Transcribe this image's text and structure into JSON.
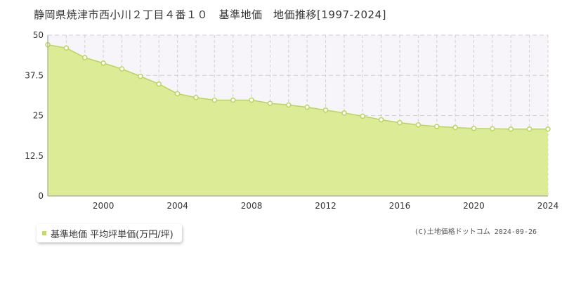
{
  "title": "静岡県焼津市西小川２丁目４番１０　基準地価　地価推移[1997-2024]",
  "copyright": "(C)土地価格ドットコム 2024-09-26",
  "colors": {
    "fill": "#dbeb96",
    "line": "#b9d65a",
    "point_fill": "#ffffff",
    "point_stroke": "#b9d65a",
    "band": "#f7f4fa",
    "grid": "#d0d0d0",
    "legend_marker": "#c5de5a"
  },
  "chart_data": {
    "type": "area",
    "title": "静岡県焼津市西小川２丁目４番１０　基準地価　地価推移[1997-2024]",
    "xlabel": "",
    "ylabel": "",
    "xlim": [
      1997,
      2024
    ],
    "ylim": [
      0,
      50
    ],
    "y_ticks": [
      "0",
      "12.5",
      "25",
      "37.5",
      "50"
    ],
    "y_tick_values": [
      0,
      12.5,
      25,
      37.5,
      50
    ],
    "x_ticks": [
      "2000",
      "2004",
      "2008",
      "2012",
      "2016",
      "2020",
      "2024"
    ],
    "x_tick_values": [
      2000,
      2004,
      2008,
      2012,
      2016,
      2020,
      2024
    ],
    "grid": true,
    "legend_position": "bottom-left",
    "series": [
      {
        "name": "基準地価 平均坪単価(万円/坪)",
        "x": [
          1997,
          1998,
          1999,
          2000,
          2001,
          2002,
          2003,
          2004,
          2005,
          2006,
          2007,
          2008,
          2009,
          2010,
          2011,
          2012,
          2013,
          2014,
          2015,
          2016,
          2017,
          2018,
          2019,
          2020,
          2021,
          2022,
          2023,
          2024
        ],
        "values": [
          47.0,
          46.0,
          43.0,
          41.3,
          39.5,
          37.2,
          34.8,
          31.8,
          30.6,
          29.8,
          29.8,
          29.8,
          28.8,
          28.3,
          27.6,
          26.7,
          25.8,
          24.8,
          23.7,
          22.8,
          22.1,
          21.6,
          21.3,
          21.0,
          20.9,
          20.8,
          20.8,
          20.8
        ]
      }
    ]
  }
}
